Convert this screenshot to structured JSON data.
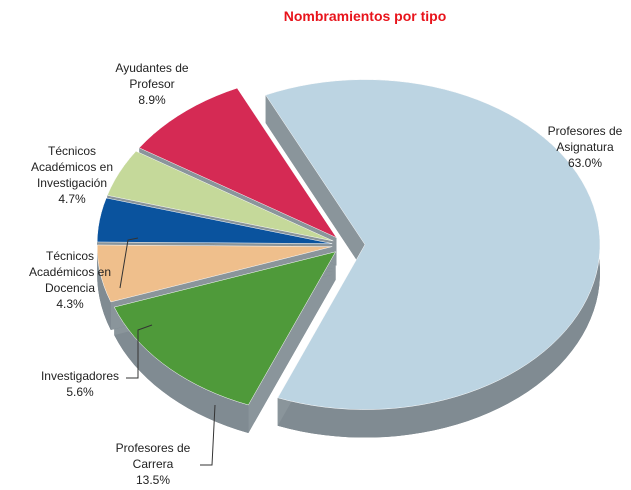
{
  "chart_data": {
    "type": "pie",
    "title": "Nombramientos por tipo",
    "categories": [
      "Profesores de Asignatura",
      "Profesores de Carrera",
      "Investigadores",
      "Técnicos Académicos en Docencia",
      "Técnicos Académicos en Investigación",
      "Ayudantes de Profesor"
    ],
    "values": [
      63.0,
      13.5,
      5.6,
      4.3,
      4.7,
      8.9
    ],
    "value_labels": [
      "63.0%",
      "13.5%",
      "5.6%",
      "4.3%",
      "4.7%",
      "8.9%"
    ],
    "colors": [
      "#bcd4e2",
      "#4f9a3a",
      "#efbf8c",
      "#0a539e",
      "#c5d99a",
      "#d52a54"
    ]
  }
}
